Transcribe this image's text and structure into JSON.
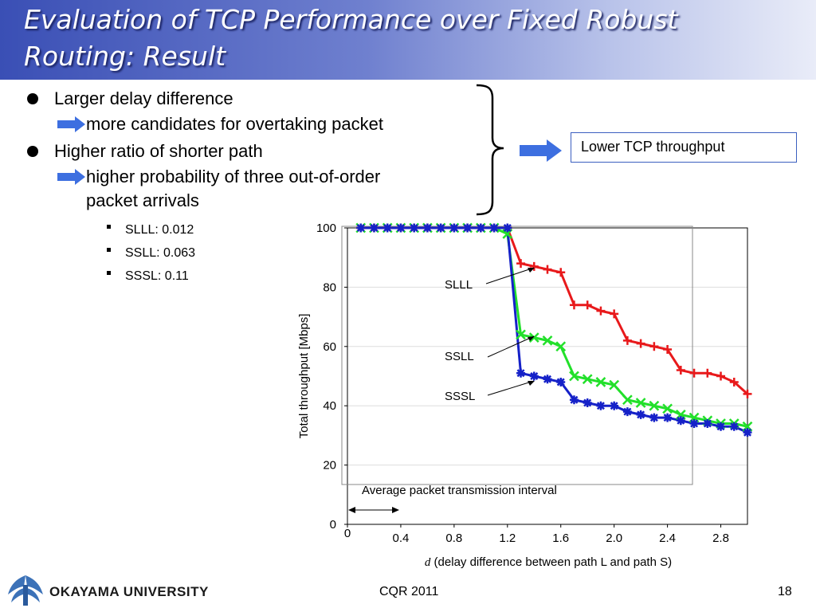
{
  "slide": {
    "title_line1": "Evaluation of TCP Performance over Fixed Robust",
    "title_line2": "Routing: Result",
    "bullet1": "Larger delay difference",
    "bullet1_sub": "more candidates for overtaking packet",
    "bullet2": "Higher ratio of shorter path",
    "bullet2_sub1": "higher probability of three out-of-order",
    "bullet2_sub2": "packet arrivals",
    "ratios": [
      "SLLL: 0.012",
      "SSLL: 0.063",
      "SSSL: 0.11"
    ],
    "result": "Lower TCP throughput",
    "footer_org": "OKAYAMA  UNIVERSITY",
    "footer_center": "CQR 2011",
    "page_number": "18",
    "arrow_color": "#3d6fe0"
  },
  "chart_data": {
    "type": "line",
    "ylabel": "Total throughput [Mbps]",
    "xlabel_var": "d",
    "xlabel_rest": " (delay difference between path L and path S)",
    "xlim": [
      0,
      3.0
    ],
    "ylim": [
      0,
      100
    ],
    "x_ticks": [
      "0",
      "0.4",
      "0.8",
      "1.2",
      "1.6",
      "2.0",
      "2.4",
      "2.8"
    ],
    "x_tick_values": [
      0,
      0.4,
      0.8,
      1.2,
      1.6,
      2.0,
      2.4,
      2.8
    ],
    "y_ticks": [
      "0",
      "20",
      "40",
      "60",
      "80",
      "100"
    ],
    "y_tick_values": [
      0,
      20,
      40,
      60,
      80,
      100
    ],
    "annotation": "Average packet transmission interval",
    "x": [
      0.1,
      0.2,
      0.3,
      0.4,
      0.5,
      0.6,
      0.7,
      0.8,
      0.9,
      1.0,
      1.1,
      1.2,
      1.3,
      1.4,
      1.5,
      1.6,
      1.7,
      1.8,
      1.9,
      2.0,
      2.1,
      2.2,
      2.3,
      2.4,
      2.5,
      2.6,
      2.7,
      2.8,
      2.9,
      3.0
    ],
    "series": [
      {
        "name": "SLLL",
        "color": "#e8191b",
        "marker": "plus",
        "values": [
          100,
          100,
          100,
          100,
          100,
          100,
          100,
          100,
          100,
          100,
          100,
          100,
          88,
          87,
          86,
          85,
          74,
          74,
          72,
          71,
          62,
          61,
          60,
          59,
          52,
          51,
          51,
          50,
          48,
          44
        ]
      },
      {
        "name": "SSLL",
        "color": "#22e02a",
        "marker": "x",
        "values": [
          100,
          100,
          100,
          100,
          100,
          100,
          100,
          100,
          100,
          100,
          100,
          98,
          64,
          63,
          62,
          60,
          50,
          49,
          48,
          47,
          42,
          41,
          40,
          39,
          37,
          36,
          35,
          34,
          34,
          33
        ]
      },
      {
        "name": "SSSL",
        "color": "#1521c8",
        "marker": "star",
        "values": [
          100,
          100,
          100,
          100,
          100,
          100,
          100,
          100,
          100,
          100,
          100,
          100,
          51,
          50,
          49,
          48,
          42,
          41,
          40,
          40,
          38,
          37,
          36,
          36,
          35,
          34,
          34,
          33,
          33,
          31
        ]
      }
    ]
  }
}
